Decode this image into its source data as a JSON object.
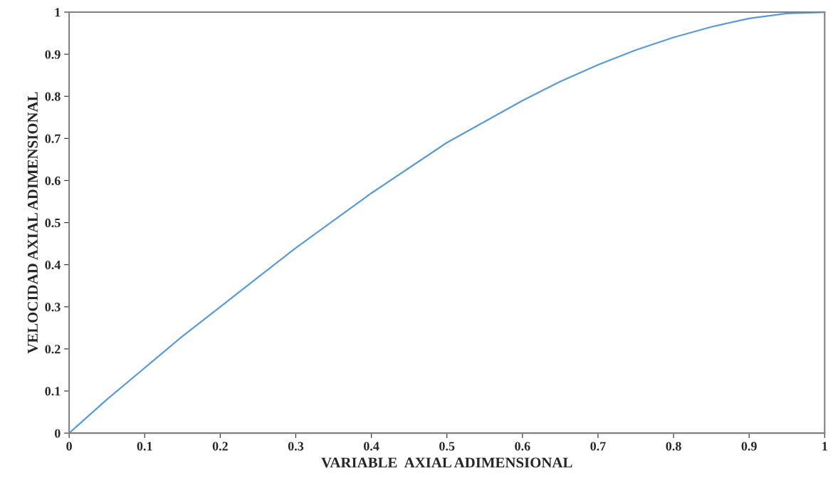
{
  "chart_data": {
    "type": "line",
    "xlabel": "VARIABLE  AXIAL ADIMENSIONAL",
    "ylabel": "VELOCIDAD AXIAL ADIMENSIONAL",
    "x": [
      0,
      0.05,
      0.1,
      0.15,
      0.2,
      0.25,
      0.3,
      0.35,
      0.4,
      0.45,
      0.5,
      0.55,
      0.6,
      0.65,
      0.7,
      0.75,
      0.8,
      0.85,
      0.9,
      0.95,
      1
    ],
    "series": [
      {
        "color": "#5b9bd5",
        "values": [
          0,
          0.08,
          0.155,
          0.23,
          0.3,
          0.37,
          0.44,
          0.505,
          0.57,
          0.63,
          0.69,
          0.74,
          0.79,
          0.835,
          0.875,
          0.91,
          0.94,
          0.965,
          0.985,
          0.997,
          1
        ]
      }
    ],
    "xlim": [
      0,
      1
    ],
    "ylim": [
      0,
      1
    ],
    "xticks": [
      0,
      0.1,
      0.2,
      0.3,
      0.4,
      0.5,
      0.6,
      0.7,
      0.8,
      0.9,
      1
    ],
    "yticks": [
      0,
      0.1,
      0.2,
      0.3,
      0.4,
      0.5,
      0.6,
      0.7,
      0.8,
      0.9,
      1
    ],
    "grid": false,
    "legend": false
  }
}
